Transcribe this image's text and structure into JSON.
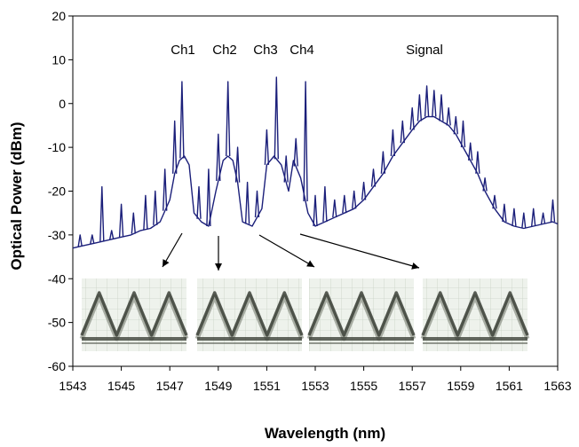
{
  "chart_data": {
    "type": "line",
    "title": "",
    "xlabel": "Wavelength (nm)",
    "ylabel": "Optical Power (dBm)",
    "xlim": [
      1543,
      1563
    ],
    "ylim": [
      -60,
      20
    ],
    "xticks": [
      "1543",
      "1545",
      "1547",
      "1549",
      "1551",
      "1553",
      "1555",
      "1557",
      "1559",
      "1561",
      "1563"
    ],
    "yticks": [
      "20",
      "10",
      "0",
      "-10",
      "-20",
      "-30",
      "-40",
      "-50",
      "-60"
    ],
    "grid": false,
    "line_color": "#1b1f7a",
    "annotations": [
      {
        "text": "Ch1",
        "x": 1547.5
      },
      {
        "text": "Ch2",
        "x": 1549.6
      },
      {
        "text": "Ch3",
        "x": 1551.5
      },
      {
        "text": "Ch4",
        "x": 1553.5
      },
      {
        "text": "Signal",
        "x": 1557.6
      }
    ],
    "eye_diagram_insets": 4,
    "series": [
      {
        "x": [
          1543.0,
          1543.4,
          1543.8,
          1544.2,
          1544.6,
          1545.0,
          1545.4,
          1545.8,
          1546.2,
          1546.6,
          1547.0,
          1547.2,
          1547.4,
          1547.6,
          1547.8,
          1548.0,
          1548.3,
          1548.6,
          1548.9,
          1549.2,
          1549.4,
          1549.6,
          1549.8,
          1550.0,
          1550.4,
          1550.8,
          1551.0,
          1551.3,
          1551.6,
          1551.9,
          1552.1,
          1552.4,
          1552.7,
          1553.0,
          1553.4,
          1553.8,
          1554.2,
          1554.6,
          1555.0,
          1555.4,
          1555.8,
          1556.2,
          1556.6,
          1557.0,
          1557.3,
          1557.6,
          1557.9,
          1558.2,
          1558.5,
          1558.8,
          1559.1,
          1559.4,
          1559.7,
          1560.0,
          1560.4,
          1560.8,
          1561.2,
          1561.6,
          1562.0,
          1562.4,
          1562.8,
          1563.0
        ],
        "y": [
          -33,
          -32.5,
          -32,
          -31.5,
          -31,
          -30.5,
          -30,
          -29,
          -28.5,
          -27,
          -22,
          -16,
          -13,
          -12,
          -14,
          -25,
          -27,
          -28,
          -20,
          -13,
          -12,
          -13,
          -18,
          -27,
          -28,
          -24,
          -14,
          -12,
          -14,
          -20,
          -13,
          -17,
          -25,
          -28,
          -27,
          -26,
          -25,
          -24,
          -22,
          -19,
          -16,
          -12,
          -9,
          -6,
          -4,
          -3,
          -3,
          -4,
          -5,
          -7,
          -10,
          -13,
          -16,
          -20,
          -24,
          -27,
          -28,
          -28.5,
          -28,
          -27.5,
          -27,
          -27.5
        ]
      }
    ],
    "spikes": [
      {
        "x": 1543.3,
        "y": -30
      },
      {
        "x": 1543.8,
        "y": -30
      },
      {
        "x": 1544.2,
        "y": -19
      },
      {
        "x": 1544.6,
        "y": -29
      },
      {
        "x": 1545.0,
        "y": -23
      },
      {
        "x": 1545.5,
        "y": -25
      },
      {
        "x": 1546.0,
        "y": -21
      },
      {
        "x": 1546.4,
        "y": -20
      },
      {
        "x": 1546.8,
        "y": -15
      },
      {
        "x": 1547.2,
        "y": -4
      },
      {
        "x": 1547.5,
        "y": 5
      },
      {
        "x": 1548.2,
        "y": -19
      },
      {
        "x": 1548.6,
        "y": -15
      },
      {
        "x": 1549.0,
        "y": -7
      },
      {
        "x": 1549.4,
        "y": 5
      },
      {
        "x": 1549.8,
        "y": -10
      },
      {
        "x": 1550.2,
        "y": -18
      },
      {
        "x": 1550.6,
        "y": -20
      },
      {
        "x": 1551.0,
        "y": -6
      },
      {
        "x": 1551.4,
        "y": 6
      },
      {
        "x": 1551.8,
        "y": -12
      },
      {
        "x": 1552.2,
        "y": -8
      },
      {
        "x": 1552.6,
        "y": 5
      },
      {
        "x": 1553.0,
        "y": -21
      },
      {
        "x": 1553.4,
        "y": -19
      },
      {
        "x": 1553.8,
        "y": -22
      },
      {
        "x": 1554.2,
        "y": -21
      },
      {
        "x": 1554.6,
        "y": -20
      },
      {
        "x": 1555.0,
        "y": -18
      },
      {
        "x": 1555.4,
        "y": -15
      },
      {
        "x": 1555.8,
        "y": -11
      },
      {
        "x": 1556.2,
        "y": -6
      },
      {
        "x": 1556.6,
        "y": -4
      },
      {
        "x": 1557.0,
        "y": -1
      },
      {
        "x": 1557.3,
        "y": 2
      },
      {
        "x": 1557.6,
        "y": 4
      },
      {
        "x": 1557.9,
        "y": 3
      },
      {
        "x": 1558.2,
        "y": 2
      },
      {
        "x": 1558.5,
        "y": -1
      },
      {
        "x": 1558.8,
        "y": -3
      },
      {
        "x": 1559.1,
        "y": -4
      },
      {
        "x": 1559.4,
        "y": -9
      },
      {
        "x": 1559.7,
        "y": -11
      },
      {
        "x": 1560.0,
        "y": -17
      },
      {
        "x": 1560.4,
        "y": -21
      },
      {
        "x": 1560.8,
        "y": -23
      },
      {
        "x": 1561.2,
        "y": -24
      },
      {
        "x": 1561.6,
        "y": -25
      },
      {
        "x": 1562.0,
        "y": -24
      },
      {
        "x": 1562.4,
        "y": -25
      },
      {
        "x": 1562.8,
        "y": -22
      }
    ]
  }
}
